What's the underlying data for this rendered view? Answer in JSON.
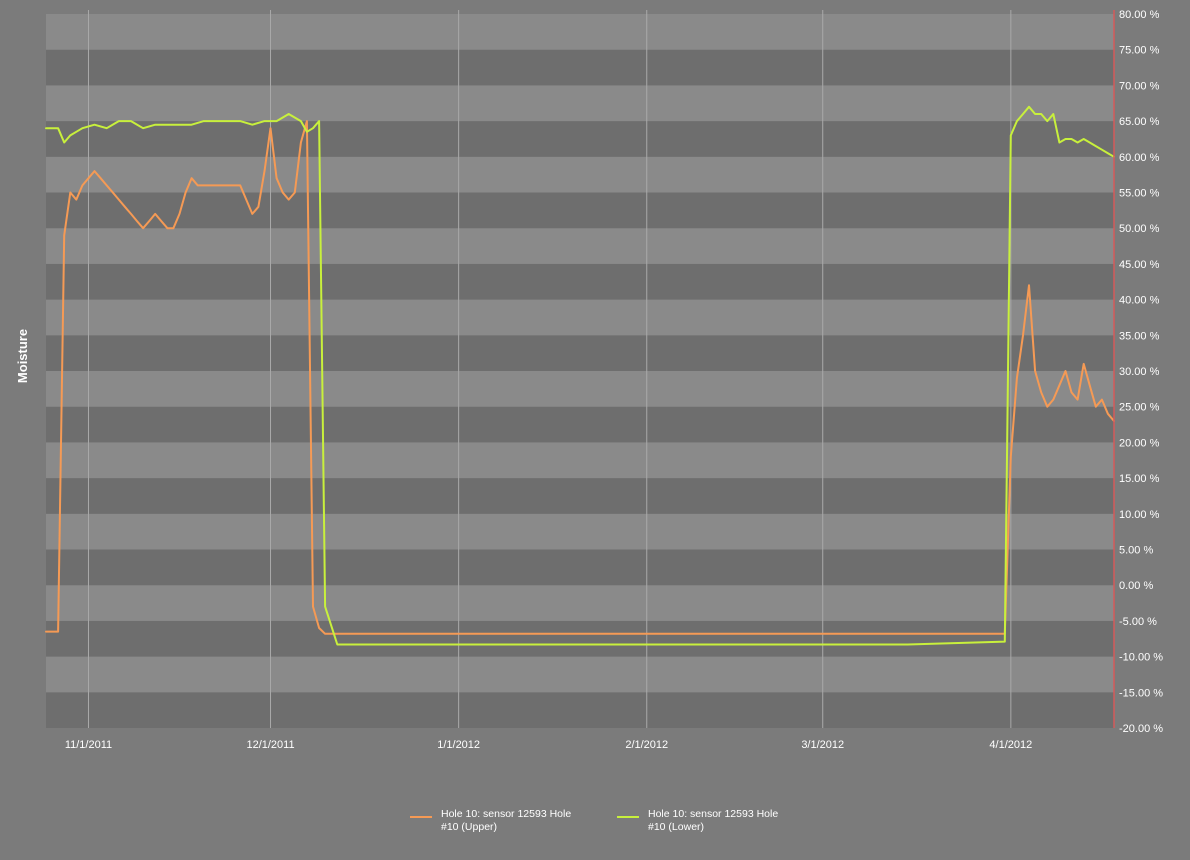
{
  "chart_data": {
    "type": "line",
    "title": "",
    "xlabel": "",
    "ylabel": "Moisture",
    "y_axis_side": "right",
    "ylim": [
      -20,
      80
    ],
    "xlim": [
      "2011-10-25",
      "2012-04-18"
    ],
    "y_ticks": [
      -20,
      -15,
      -10,
      -5,
      0,
      5,
      10,
      15,
      20,
      25,
      30,
      35,
      40,
      45,
      50,
      55,
      60,
      65,
      70,
      75,
      80
    ],
    "y_tick_labels": [
      "-20.00 %",
      "-15.00 %",
      "-10.00 %",
      "-5.00 %",
      "0.00 %",
      "5.00 %",
      "10.00 %",
      "15.00 %",
      "20.00 %",
      "25.00 %",
      "30.00 %",
      "35.00 %",
      "40.00 %",
      "45.00 %",
      "50.00 %",
      "55.00 %",
      "60.00 %",
      "65.00 %",
      "70.00 %",
      "75.00 %",
      "80.00 %"
    ],
    "x_ticks": [
      "2011-11-01",
      "2011-12-01",
      "2012-01-01",
      "2012-02-01",
      "2012-03-01",
      "2012-04-01"
    ],
    "x_tick_labels": [
      "11/1/2011",
      "12/1/2011",
      "1/1/2012",
      "2/1/2012",
      "3/1/2012",
      "4/1/2012"
    ],
    "grid": "vertical lines at x ticks, alternating horizontal bands",
    "legend_position": "bottom-center",
    "colors": {
      "background": "#7b7b7b",
      "band_light": "#8a8a8a",
      "band_dark": "#6e6e6e",
      "grid_line": "#a9a9a9",
      "axis_right": "#d45a5a",
      "text": "#ffffff"
    },
    "series": [
      {
        "name": "Hole 10: sensor 12593 Hole #10 (Upper)",
        "legend_lines": [
          "Hole 10: sensor 12593 Hole",
          "#10 (Upper)"
        ],
        "color": "#f59a55",
        "x": [
          "2011-10-25",
          "2011-10-26",
          "2011-10-27",
          "2011-10-28",
          "2011-10-29",
          "2011-10-30",
          "2011-10-31",
          "2011-11-01",
          "2011-11-02",
          "2011-11-03",
          "2011-11-04",
          "2011-11-05",
          "2011-11-06",
          "2011-11-07",
          "2011-11-08",
          "2011-11-09",
          "2011-11-10",
          "2011-11-11",
          "2011-11-12",
          "2011-11-13",
          "2011-11-14",
          "2011-11-15",
          "2011-11-16",
          "2011-11-17",
          "2011-11-18",
          "2011-11-19",
          "2011-11-20",
          "2011-11-21",
          "2011-11-22",
          "2011-11-24",
          "2011-11-26",
          "2011-11-28",
          "2011-11-29",
          "2011-11-30",
          "2011-12-01",
          "2011-12-02",
          "2011-12-03",
          "2011-12-04",
          "2011-12-05",
          "2011-12-06",
          "2011-12-07",
          "2011-12-08",
          "2011-12-09",
          "2011-12-10",
          "2011-12-11",
          "2011-12-12",
          "2011-12-15",
          "2012-01-01",
          "2012-02-01",
          "2012-03-01",
          "2012-03-30",
          "2012-03-31",
          "2012-04-01",
          "2012-04-02",
          "2012-04-03",
          "2012-04-04",
          "2012-04-05",
          "2012-04-06",
          "2012-04-07",
          "2012-04-08",
          "2012-04-09",
          "2012-04-10",
          "2012-04-11",
          "2012-04-12",
          "2012-04-13",
          "2012-04-14",
          "2012-04-15",
          "2012-04-16",
          "2012-04-17",
          "2012-04-18"
        ],
        "values": [
          -6.5,
          -6.5,
          -6.5,
          49,
          55,
          54,
          56,
          57,
          58,
          57,
          56,
          55,
          54,
          53,
          52,
          51,
          50,
          51,
          52,
          51,
          50,
          50,
          52,
          55,
          57,
          56,
          56,
          56,
          56,
          56,
          56,
          52,
          53,
          58,
          64,
          57,
          55,
          54,
          55,
          62,
          65,
          -3,
          -6,
          -6.8,
          -6.8,
          -6.8,
          -6.8,
          -6.8,
          -6.8,
          -6.8,
          -6.8,
          -6.8,
          18,
          29,
          35,
          42,
          30,
          27,
          25,
          26,
          28,
          30,
          27,
          26,
          31,
          28,
          25,
          26,
          24,
          23
        ]
      },
      {
        "name": "Hole 10: sensor 12593 Hole #10 (Lower)",
        "legend_lines": [
          "Hole 10: sensor 12593 Hole",
          "#10 (Lower)"
        ],
        "color": "#c8f03c",
        "x": [
          "2011-10-25",
          "2011-10-26",
          "2011-10-27",
          "2011-10-28",
          "2011-10-29",
          "2011-10-30",
          "2011-10-31",
          "2011-11-02",
          "2011-11-04",
          "2011-11-06",
          "2011-11-08",
          "2011-11-10",
          "2011-11-12",
          "2011-11-14",
          "2011-11-16",
          "2011-11-18",
          "2011-11-20",
          "2011-11-22",
          "2011-11-24",
          "2011-11-26",
          "2011-11-28",
          "2011-11-30",
          "2011-12-02",
          "2011-12-04",
          "2011-12-06",
          "2011-12-07",
          "2011-12-08",
          "2011-12-09",
          "2011-12-10",
          "2011-12-12",
          "2011-12-20",
          "2012-01-01",
          "2012-01-15",
          "2012-02-01",
          "2012-02-15",
          "2012-03-01",
          "2012-03-15",
          "2012-03-31",
          "2012-04-01",
          "2012-04-02",
          "2012-04-03",
          "2012-04-04",
          "2012-04-05",
          "2012-04-06",
          "2012-04-07",
          "2012-04-08",
          "2012-04-09",
          "2012-04-10",
          "2012-04-11",
          "2012-04-12",
          "2012-04-13",
          "2012-04-14",
          "2012-04-15",
          "2012-04-16",
          "2012-04-17",
          "2012-04-18"
        ],
        "values": [
          64,
          64,
          64,
          62,
          63,
          63.5,
          64,
          64.5,
          64,
          65,
          65,
          64,
          64.5,
          64.5,
          64.5,
          64.5,
          65,
          65,
          65,
          65,
          64.5,
          65,
          65,
          66,
          65,
          63.5,
          64,
          65,
          -3,
          -8.3,
          -8.3,
          -8.3,
          -8.3,
          -8.3,
          -8.3,
          -8.3,
          -8.3,
          -7.9,
          63,
          65,
          66,
          67,
          66,
          66,
          65,
          66,
          62,
          62.5,
          62.5,
          62,
          62.5,
          62,
          61.5,
          61,
          60.5,
          60
        ]
      }
    ]
  }
}
